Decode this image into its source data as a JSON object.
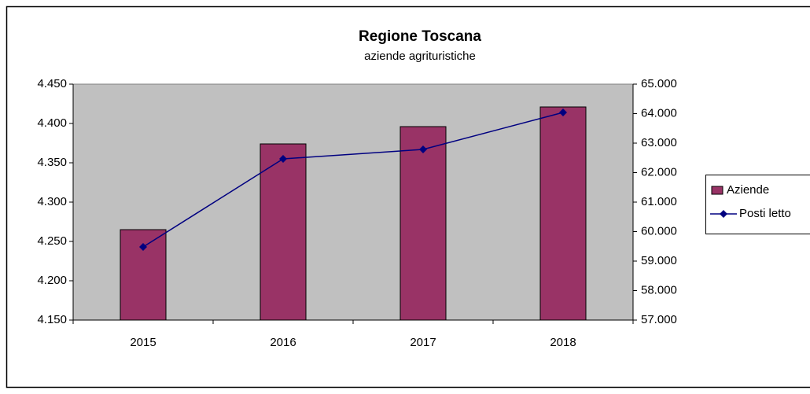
{
  "chart_data": {
    "type": "combo",
    "title": "Regione Toscana",
    "subtitle": "aziende agrituristiche",
    "categories": [
      "2015",
      "2016",
      "2017",
      "2018"
    ],
    "series": [
      {
        "name": "Aziende",
        "type": "bar",
        "color": "#993366",
        "values": [
          4265,
          4374,
          4396,
          4421
        ]
      },
      {
        "name": "Posti letto",
        "type": "line",
        "color": "#000080",
        "axis": "y2",
        "values": [
          59480,
          62467,
          62787,
          64040
        ]
      }
    ],
    "ylim": [
      4150,
      4450
    ],
    "yticks": [
      {
        "value": 4150,
        "label": "4.150"
      },
      {
        "value": 4200,
        "label": "4.200"
      },
      {
        "value": 4250,
        "label": "4.250"
      },
      {
        "value": 4300,
        "label": "4.300"
      },
      {
        "value": 4350,
        "label": "4.350"
      },
      {
        "value": 4400,
        "label": "4.400"
      },
      {
        "value": 4450,
        "label": "4.450"
      }
    ],
    "y2lim": [
      57000,
      65000
    ],
    "y2ticks": [
      {
        "value": 57000,
        "label": "57.000"
      },
      {
        "value": 58000,
        "label": "58.000"
      },
      {
        "value": 59000,
        "label": "59.000"
      },
      {
        "value": 60000,
        "label": "60.000"
      },
      {
        "value": 61000,
        "label": "61.000"
      },
      {
        "value": 62000,
        "label": "62.000"
      },
      {
        "value": 63000,
        "label": "63.000"
      },
      {
        "value": 64000,
        "label": "64.000"
      },
      {
        "value": 65000,
        "label": "65.000"
      }
    ],
    "plot_background": "#c0c0c0",
    "legend": "right"
  }
}
